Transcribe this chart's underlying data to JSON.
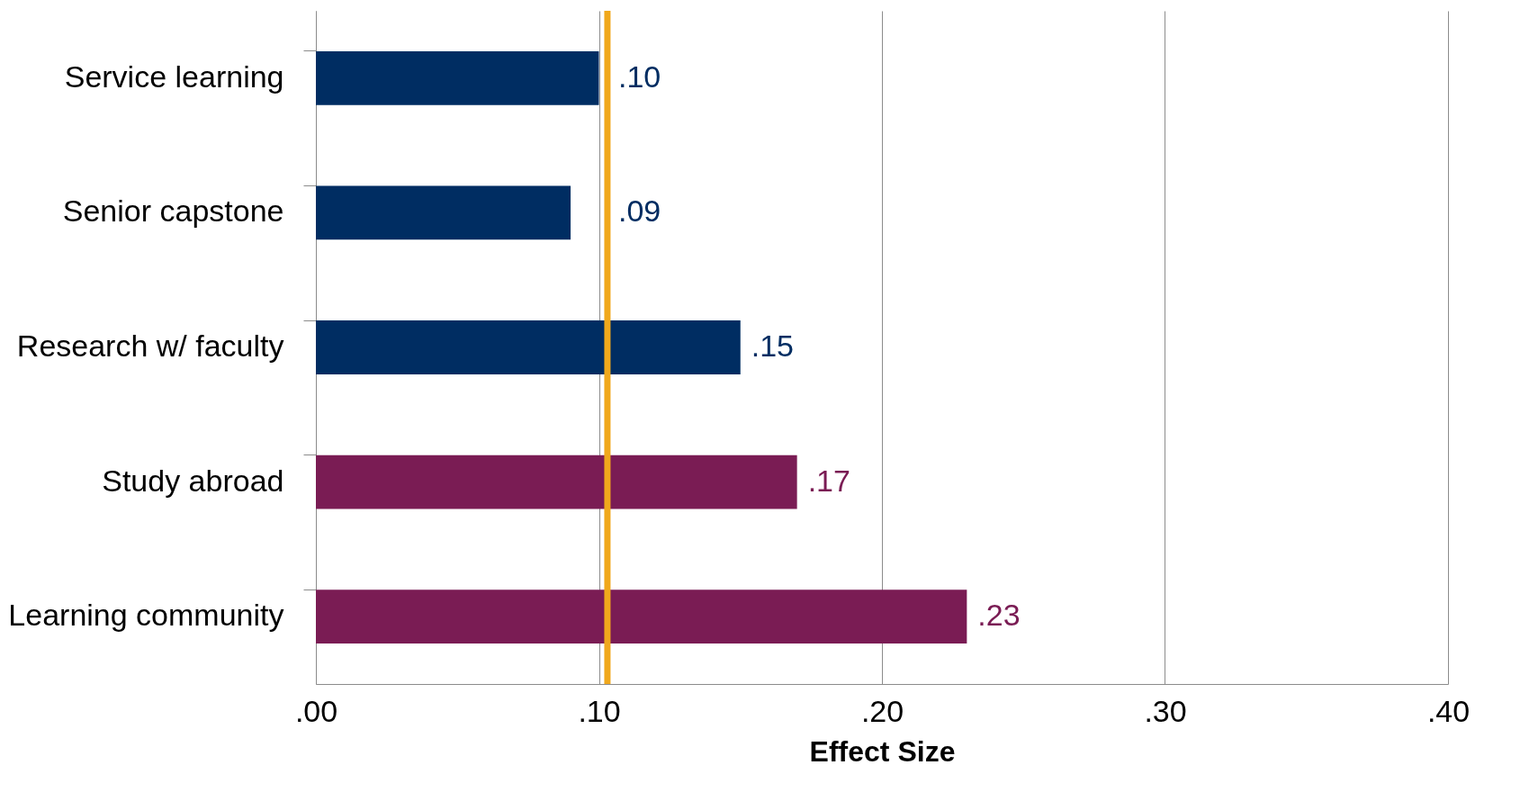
{
  "chart_data": {
    "type": "bar",
    "orientation": "horizontal",
    "xlabel": "Effect Size",
    "categories": [
      "Service learning",
      "Senior capstone",
      "Research w/ faculty",
      "Study abroad",
      "Learning community"
    ],
    "values": [
      0.1,
      0.09,
      0.15,
      0.17,
      0.23
    ],
    "value_labels": [
      ".10",
      ".09",
      ".15",
      ".17",
      ".23"
    ],
    "colors": [
      "#002d62",
      "#002d62",
      "#002d62",
      "#7a1c54",
      "#7a1c54"
    ],
    "xlim": [
      0,
      0.4
    ],
    "xticks": [
      {
        "value": 0,
        "label": ".00"
      },
      {
        "value": 0.1,
        "label": ".10"
      },
      {
        "value": 0.2,
        "label": ".20"
      },
      {
        "value": 0.3,
        "label": ".30"
      },
      {
        "value": 0.4,
        "label": ".40"
      }
    ],
    "grid": "x",
    "ref_lines": [
      {
        "axis": "x",
        "value": 0.103,
        "label": null,
        "color": "#f0a81c"
      }
    ]
  }
}
